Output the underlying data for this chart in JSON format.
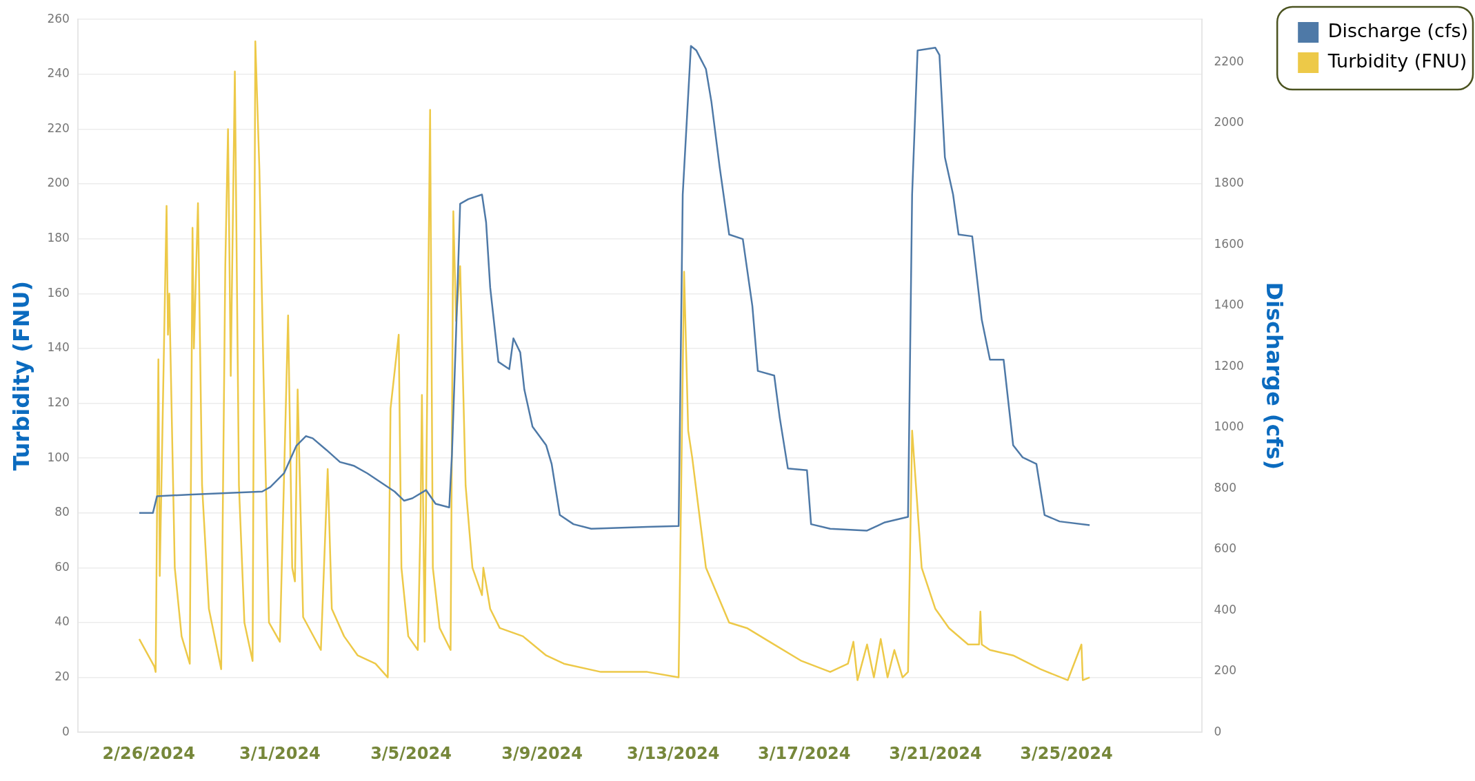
{
  "chart_data": {
    "type": "line",
    "ylabel": "Turbidity (FNU)",
    "y2label": "Discharge (cfs)",
    "xlim": [
      "2024-02-23T20:00",
      "2024-03-29T03:00"
    ],
    "xticks": [
      {
        "value": "2024-02-26",
        "label": "2/26/2024"
      },
      {
        "value": "2024-03-01",
        "label": "3/1/2024"
      },
      {
        "value": "2024-03-05",
        "label": "3/5/2024"
      },
      {
        "value": "2024-03-09",
        "label": "3/9/2024"
      },
      {
        "value": "2024-03-13",
        "label": "3/13/2024"
      },
      {
        "value": "2024-03-17",
        "label": "3/17/2024"
      },
      {
        "value": "2024-03-21",
        "label": "3/21/2024"
      },
      {
        "value": "2024-03-25",
        "label": "3/25/2024"
      }
    ],
    "ylim": [
      0,
      260
    ],
    "yticks": [
      0,
      20,
      40,
      60,
      80,
      100,
      120,
      140,
      160,
      180,
      200,
      220,
      240,
      260
    ],
    "y2lim": [
      0,
      2340
    ],
    "y2ticks": [
      0,
      200,
      400,
      600,
      800,
      1000,
      1200,
      1400,
      1600,
      1800,
      2000,
      2200
    ],
    "grid": "y",
    "legend": "top right",
    "marker": "none",
    "line_style": "solid",
    "series": [
      {
        "name": "Discharge (cfs)",
        "color": "#4e79a7",
        "axis": "y2",
        "x": [
          "2024-02-25T17:00",
          "2024-02-26T03:00",
          "2024-02-26T06:00",
          "2024-02-27T05:00",
          "2024-02-28T08:00",
          "2024-02-29T11:00",
          "2024-02-29T17:00",
          "2024-03-01T03:00",
          "2024-03-01T12:00",
          "2024-03-01T19:00",
          "2024-03-02T00:00",
          "2024-03-02T10:00",
          "2024-03-02T20:00",
          "2024-03-03T06:00",
          "2024-03-03T16:00",
          "2024-03-04T02:00",
          "2024-03-04T12:00",
          "2024-03-04T19:00",
          "2024-03-05T01:00",
          "2024-03-05T11:00",
          "2024-03-05T18:00",
          "2024-03-06T04:00",
          "2024-03-06T06:00",
          "2024-03-06T09:00",
          "2024-03-06T12:00",
          "2024-03-06T18:00",
          "2024-03-07T04:00",
          "2024-03-07T07:00",
          "2024-03-07T10:00",
          "2024-03-07T16:00",
          "2024-03-08T00:00",
          "2024-03-08T03:00",
          "2024-03-08T08:00",
          "2024-03-08T11:00",
          "2024-03-08T17:00",
          "2024-03-09T03:00",
          "2024-03-09T07:00",
          "2024-03-09T13:00",
          "2024-03-09T23:00",
          "2024-03-10T12:00",
          "2024-03-12T05:00",
          "2024-03-13T04:00",
          "2024-03-13T07:00",
          "2024-03-13T13:00",
          "2024-03-13T17:00",
          "2024-03-14T00:00",
          "2024-03-14T04:00",
          "2024-03-14T10:00",
          "2024-03-14T17:00",
          "2024-03-15T03:00",
          "2024-03-15T10:00",
          "2024-03-15T14:00",
          "2024-03-16T02:00",
          "2024-03-16T06:00",
          "2024-03-16T12:00",
          "2024-03-17T02:00",
          "2024-03-17T05:00",
          "2024-03-17T19:00",
          "2024-03-18T22:00",
          "2024-03-19T11:00",
          "2024-03-20T04:00",
          "2024-03-20T07:00",
          "2024-03-20T11:00",
          "2024-03-21T00:00",
          "2024-03-21T03:00",
          "2024-03-21T07:00",
          "2024-03-21T13:00",
          "2024-03-21T17:00",
          "2024-03-22T03:00",
          "2024-03-22T10:00",
          "2024-03-22T16:00",
          "2024-03-23T02:00",
          "2024-03-23T09:00",
          "2024-03-23T16:00",
          "2024-03-24T02:00",
          "2024-03-24T08:00",
          "2024-03-24T19:00",
          "2024-03-25T17:00"
        ],
        "values": [
          720,
          720,
          775,
          780,
          785,
          790,
          805,
          850,
          940,
          972,
          965,
          927,
          887,
          875,
          850,
          820,
          790,
          760,
          768,
          795,
          750,
          738,
          912,
          1308,
          1735,
          1750,
          1765,
          1674,
          1460,
          1216,
          1192,
          1293,
          1247,
          1125,
          1003,
          942,
          881,
          713,
          683,
          668,
          674,
          677,
          1765,
          2253,
          2238,
          2177,
          2070,
          1857,
          1634,
          1619,
          1399,
          1186,
          1171,
          1034,
          866,
          860,
          683,
          668,
          662,
          689,
          707,
          1765,
          2238,
          2247,
          2223,
          1887,
          1765,
          1634,
          1628,
          1354,
          1223,
          1223,
          942,
          902,
          881,
          713,
          692,
          680
        ]
      },
      {
        "name": "Turbidity (FNU)",
        "color": "#edc948",
        "x": [
          "2024-02-25T17:00",
          "2024-02-26T04:00",
          "2024-02-26T05:00",
          "2024-02-26T07:00",
          "2024-02-26T08:00",
          "2024-02-26T13:00",
          "2024-02-26T14:00",
          "2024-02-26T15:00",
          "2024-02-26T19:00",
          "2024-02-27T00:00",
          "2024-02-27T06:00",
          "2024-02-27T08:00",
          "2024-02-27T09:00",
          "2024-02-27T12:00",
          "2024-02-27T15:00",
          "2024-02-27T20:00",
          "2024-02-28T05:00",
          "2024-02-28T08:00",
          "2024-02-28T10:00",
          "2024-02-28T12:00",
          "2024-02-28T15:00",
          "2024-02-28T18:00",
          "2024-02-28T22:00",
          "2024-02-29T04:00",
          "2024-02-29T06:00",
          "2024-02-29T09:00",
          "2024-02-29T12:00",
          "2024-02-29T16:00",
          "2024-03-01T00:00",
          "2024-03-01T06:00",
          "2024-03-01T09:00",
          "2024-03-01T11:00",
          "2024-03-01T13:00",
          "2024-03-01T17:00",
          "2024-03-02T06:00",
          "2024-03-02T11:00",
          "2024-03-02T14:00",
          "2024-03-02T23:00",
          "2024-03-03T09:00",
          "2024-03-03T22:00",
          "2024-03-04T07:00",
          "2024-03-04T09:00",
          "2024-03-04T15:00",
          "2024-03-04T17:00",
          "2024-03-04T22:00",
          "2024-03-05T05:00",
          "2024-03-05T07:00",
          "2024-03-05T08:00",
          "2024-03-05T10:00",
          "2024-03-05T14:00",
          "2024-03-05T16:00",
          "2024-03-05T21:00",
          "2024-03-06T05:00",
          "2024-03-06T07:00",
          "2024-03-06T09:00",
          "2024-03-06T12:00",
          "2024-03-06T16:00",
          "2024-03-06T21:00",
          "2024-03-07T04:00",
          "2024-03-07T05:00",
          "2024-03-07T10:00",
          "2024-03-07T17:00",
          "2024-03-08T10:00",
          "2024-03-09T03:00",
          "2024-03-09T16:00",
          "2024-03-10T19:00",
          "2024-03-12T05:00",
          "2024-03-13T04:00",
          "2024-03-13T08:00",
          "2024-03-13T11:00",
          "2024-03-13T14:00",
          "2024-03-14T00:00",
          "2024-03-14T17:00",
          "2024-03-15T06:00",
          "2024-03-16T02:00",
          "2024-03-16T22:00",
          "2024-03-17T19:00",
          "2024-03-18T08:00",
          "2024-03-18T12:00",
          "2024-03-18T15:00",
          "2024-03-18T22:00",
          "2024-03-19T03:00",
          "2024-03-19T08:00",
          "2024-03-19T13:00",
          "2024-03-19T18:00",
          "2024-03-20T00:00",
          "2024-03-20T04:00",
          "2024-03-20T07:00",
          "2024-03-20T14:00",
          "2024-03-21T00:00",
          "2024-03-21T10:00",
          "2024-03-22T00:00",
          "2024-03-22T08:00",
          "2024-03-22T09:00",
          "2024-03-22T10:00",
          "2024-03-22T16:00",
          "2024-03-23T09:00",
          "2024-03-24T05:00",
          "2024-03-25T01:00",
          "2024-03-25T11:00",
          "2024-03-25T12:00",
          "2024-03-25T17:00"
        ],
        "values": [
          34,
          24,
          22,
          136,
          57,
          192,
          145,
          160,
          60,
          35,
          25,
          184,
          140,
          193,
          90,
          45,
          23,
          170,
          220,
          130,
          241,
          90,
          40,
          26,
          252,
          205,
          130,
          40,
          33,
          152,
          60,
          55,
          125,
          42,
          30,
          96,
          45,
          35,
          28,
          25,
          20,
          118,
          145,
          60,
          35,
          30,
          78,
          123,
          33,
          227,
          60,
          38,
          30,
          190,
          150,
          170,
          90,
          60,
          50,
          60,
          45,
          38,
          35,
          28,
          25,
          22,
          22,
          20,
          168,
          110,
          100,
          60,
          40,
          38,
          32,
          26,
          22,
          25,
          33,
          19,
          32,
          20,
          34,
          20,
          30,
          20,
          22,
          110,
          60,
          45,
          38,
          32,
          32,
          44,
          32,
          30,
          28,
          23,
          19,
          32,
          19,
          20
        ]
      }
    ]
  }
}
